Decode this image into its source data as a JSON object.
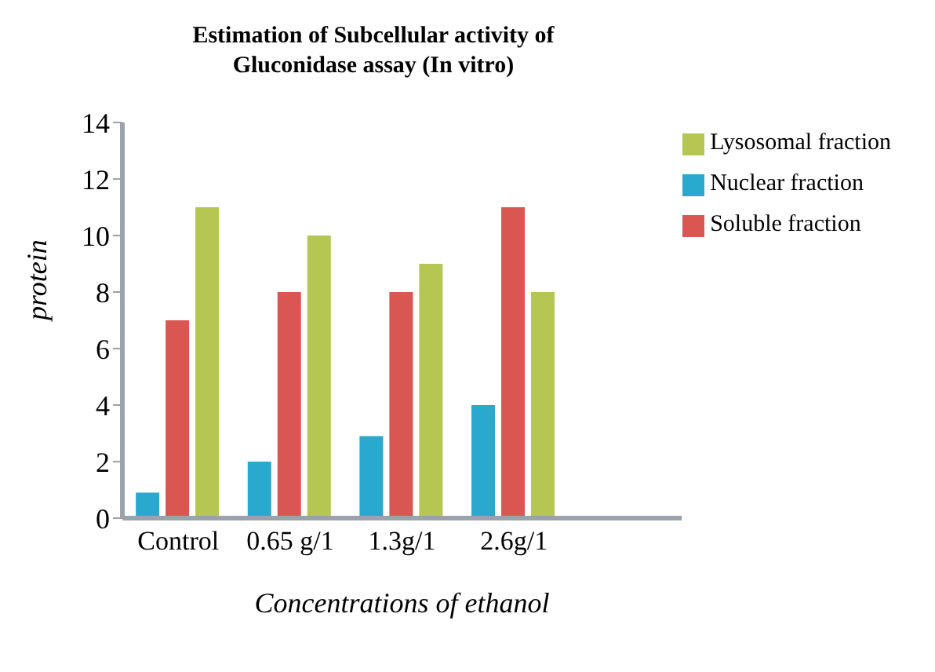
{
  "chart_data": {
    "type": "bar",
    "title": "Estimation of Subcellular activity of\nGluconidase assay (In vitro)",
    "xlabel": "Concentrations of ethanol",
    "ylabel": "protein",
    "categories": [
      "Control",
      "0.65 g/1",
      "1.3g/1",
      "2.6g/1",
      null
    ],
    "series": [
      {
        "name": "Nuclear fraction",
        "color": "#2aa9cf",
        "values": [
          0.9,
          2,
          2.9,
          4,
          null
        ]
      },
      {
        "name": "Soluble fraction",
        "color": "#d95652",
        "values": [
          7,
          8,
          8,
          11,
          null
        ]
      },
      {
        "name": "Lysosomal fraction",
        "color": "#b5c653",
        "values": [
          11,
          10,
          9,
          8,
          null
        ]
      }
    ],
    "ylim": [
      0,
      14
    ],
    "yticks": [
      0,
      2,
      4,
      6,
      8,
      10,
      12,
      14
    ],
    "grid": false,
    "legend": "top right"
  }
}
